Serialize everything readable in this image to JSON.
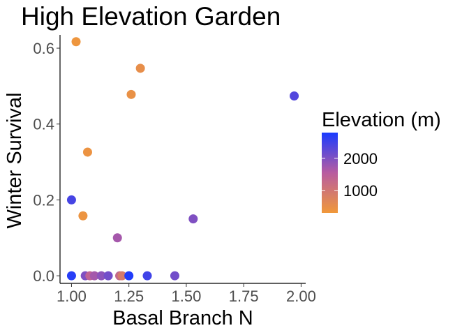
{
  "chart_data": {
    "type": "scatter",
    "title": "High Elevation Garden",
    "xlabel": "Basal Branch N",
    "ylabel": "Winter Survival",
    "xlim": [
      0.95,
      2.02
    ],
    "ylim": [
      -0.02,
      0.635
    ],
    "xticks": [
      1.0,
      1.25,
      1.5,
      1.75,
      2.0
    ],
    "xtick_labels": [
      "1.00",
      "1.25",
      "1.50",
      "1.75",
      "2.00"
    ],
    "yticks": [
      0.0,
      0.2,
      0.4,
      0.6
    ],
    "ytick_labels": [
      "0.0",
      "0.2",
      "0.4",
      "0.6"
    ],
    "grid": false,
    "legend": {
      "title": "Elevation (m)",
      "placement": "right",
      "type": "colorbar",
      "ticks": [
        1000,
        2000
      ],
      "tick_labels": [
        "1000",
        "2000"
      ],
      "range": [
        300,
        2800
      ],
      "color_low": "#F0983A",
      "color_mid": "#B85CA0",
      "color_high": "#1A3BFF"
    },
    "points": [
      {
        "x": 1.02,
        "y": 0.617,
        "elevation": 350
      },
      {
        "x": 1.3,
        "y": 0.547,
        "elevation": 500
      },
      {
        "x": 1.26,
        "y": 0.478,
        "elevation": 450
      },
      {
        "x": 1.97,
        "y": 0.474,
        "elevation": 2350
      },
      {
        "x": 1.07,
        "y": 0.326,
        "elevation": 400
      },
      {
        "x": 1.0,
        "y": 0.2,
        "elevation": 2450
      },
      {
        "x": 1.05,
        "y": 0.158,
        "elevation": 380
      },
      {
        "x": 1.53,
        "y": 0.15,
        "elevation": 2000
      },
      {
        "x": 1.2,
        "y": 0.1,
        "elevation": 1700
      },
      {
        "x": 1.0,
        "y": 0.0,
        "elevation": 2700
      },
      {
        "x": 1.06,
        "y": 0.0,
        "elevation": 2000
      },
      {
        "x": 1.08,
        "y": 0.0,
        "elevation": 1400
      },
      {
        "x": 1.1,
        "y": 0.0,
        "elevation": 1700
      },
      {
        "x": 1.13,
        "y": 0.0,
        "elevation": 1900
      },
      {
        "x": 1.16,
        "y": 0.0,
        "elevation": 2100
      },
      {
        "x": 1.21,
        "y": 0.0,
        "elevation": 1300
      },
      {
        "x": 1.22,
        "y": 0.0,
        "elevation": 900
      },
      {
        "x": 1.25,
        "y": 0.0,
        "elevation": 2750
      },
      {
        "x": 1.33,
        "y": 0.0,
        "elevation": 2500
      },
      {
        "x": 1.45,
        "y": 0.0,
        "elevation": 2100
      }
    ]
  }
}
